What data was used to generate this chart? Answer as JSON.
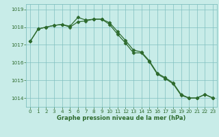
{
  "hours": [
    0,
    1,
    2,
    3,
    4,
    5,
    6,
    7,
    8,
    9,
    10,
    11,
    12,
    13,
    14,
    15,
    16,
    17,
    18,
    19,
    20,
    21,
    22,
    23
  ],
  "s1_vals": [
    1017.2,
    1017.9,
    1018.0,
    1018.1,
    1018.15,
    1018.0,
    1018.3,
    1018.35,
    1018.45,
    1018.45,
    1018.15,
    1017.6,
    1017.1,
    1016.55,
    1016.55,
    1016.05,
    1015.35,
    1015.1,
    1014.8,
    1014.15,
    1014.0,
    1014.0,
    1014.2,
    1014.0
  ],
  "s2_vals": [
    1017.2,
    1017.9,
    1018.0,
    1018.1,
    1018.15,
    1018.05,
    1018.55,
    1018.4,
    1018.45,
    1018.45,
    1018.25,
    1017.75,
    1017.25,
    1016.7,
    1016.6,
    1016.1,
    1015.4,
    1015.15,
    1014.85,
    1014.2,
    1014.0,
    1014.0,
    1014.2,
    1014.0
  ],
  "line_color": "#2d6a2d",
  "bg_color": "#c8ece8",
  "grid_color": "#7fbfbf",
  "xlabel": "Graphe pression niveau de la mer (hPa)",
  "ylim_min": 1013.5,
  "ylim_max": 1019.3,
  "yticks": [
    1014,
    1015,
    1016,
    1017,
    1018,
    1019
  ],
  "xticks": [
    0,
    1,
    2,
    3,
    4,
    5,
    6,
    7,
    8,
    9,
    10,
    11,
    12,
    13,
    14,
    15,
    16,
    17,
    18,
    19,
    20,
    21,
    22,
    23
  ],
  "xlabel_fontsize": 6.0,
  "tick_fontsize": 5.2,
  "marker_size": 2.5,
  "linewidth": 0.9
}
